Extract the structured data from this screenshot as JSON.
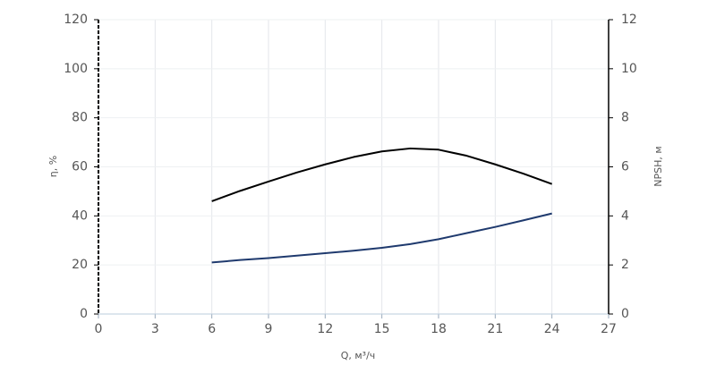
{
  "chart_data": {
    "type": "line",
    "x_label": "Q, м³/ч",
    "y_label": "η, %",
    "y2_label": "NPSH, м",
    "x": [
      6,
      7.5,
      9,
      10.5,
      12,
      13.5,
      15,
      16.5,
      18,
      19.5,
      21,
      22.5,
      24
    ],
    "series": [
      {
        "name": "η",
        "color": "#000000",
        "values": [
          46,
          50.2,
          54,
          57.7,
          61,
          64,
          66.3,
          67.5,
          67,
          64.5,
          61,
          57.2,
          53
        ]
      },
      {
        "name": "NPSH",
        "color": "#1f3a6e",
        "axis": "y2",
        "values": [
          2.1,
          2.2,
          2.28,
          2.38,
          2.48,
          2.58,
          2.7,
          2.85,
          3.05,
          3.3,
          3.55,
          3.82,
          4.1
        ]
      }
    ],
    "xlim": [
      0,
      27
    ],
    "xticks": [
      0,
      3,
      6,
      9,
      12,
      15,
      18,
      21,
      24,
      27
    ],
    "ylim": [
      0,
      120
    ],
    "yticks": [
      0,
      20,
      40,
      60,
      80,
      100,
      120
    ],
    "y2lim": [
      0,
      12
    ],
    "y2ticks": [
      0,
      2,
      4,
      6,
      8,
      10,
      12
    ],
    "grid": true
  }
}
